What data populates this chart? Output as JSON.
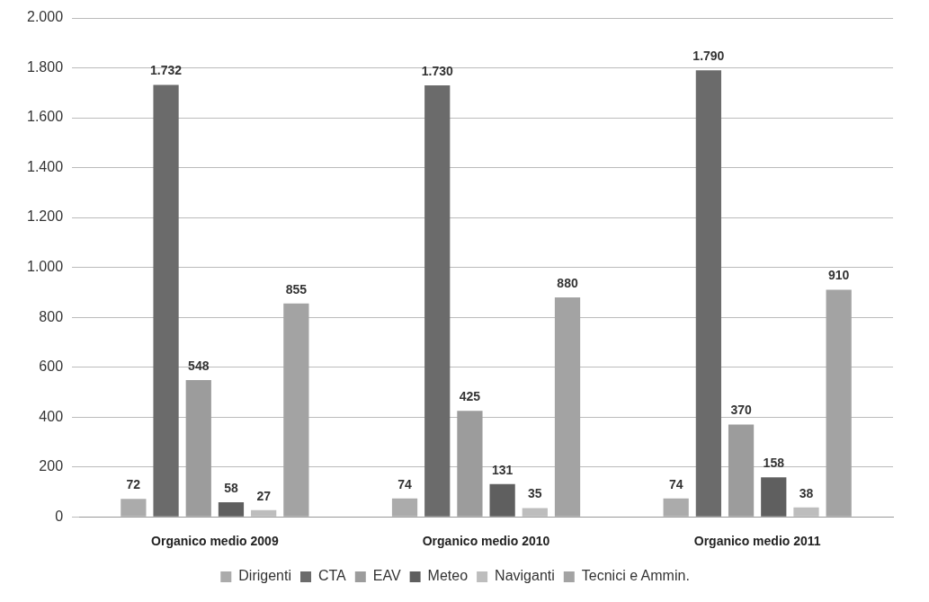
{
  "chart_data": {
    "type": "bar",
    "categories": [
      "Organico medio 2009",
      "Organico medio 2010",
      "Organico medio 2011"
    ],
    "series": [
      {
        "name": "Dirigenti",
        "color": "#ababab",
        "values": [
          72,
          74,
          74
        ],
        "value_labels": [
          "72",
          "74",
          "74"
        ]
      },
      {
        "name": "CTA",
        "color": "#6b6b6b",
        "values": [
          1732,
          1730,
          1790
        ],
        "value_labels": [
          "1.732",
          "1.730",
          "1.790"
        ]
      },
      {
        "name": "EAV",
        "color": "#9c9c9c",
        "values": [
          548,
          425,
          370
        ],
        "value_labels": [
          "548",
          "425",
          "370"
        ]
      },
      {
        "name": "Meteo",
        "color": "#5f5f5f",
        "values": [
          58,
          131,
          158
        ],
        "value_labels": [
          "58",
          "131",
          "158"
        ]
      },
      {
        "name": "Naviganti",
        "color": "#bdbdbd",
        "values": [
          27,
          35,
          38
        ],
        "value_labels": [
          "27",
          "35",
          "38"
        ]
      },
      {
        "name": "Tecnici e Ammin.",
        "color": "#a3a3a3",
        "values": [
          855,
          880,
          910
        ],
        "value_labels": [
          "855",
          "880",
          "910"
        ]
      }
    ],
    "ylim": [
      0,
      2000
    ],
    "yticks": [
      0,
      200,
      400,
      600,
      800,
      {
        "value": 1000,
        "label": "1.000"
      },
      {
        "value": 1200,
        "label": "1.200"
      },
      {
        "value": 1400,
        "label": "1.400"
      },
      {
        "value": 1600,
        "label": "1.600"
      },
      {
        "value": 1800,
        "label": "1.800"
      },
      {
        "value": 2000,
        "label": "2.000"
      }
    ],
    "grid": "y",
    "legend": "bottom"
  }
}
